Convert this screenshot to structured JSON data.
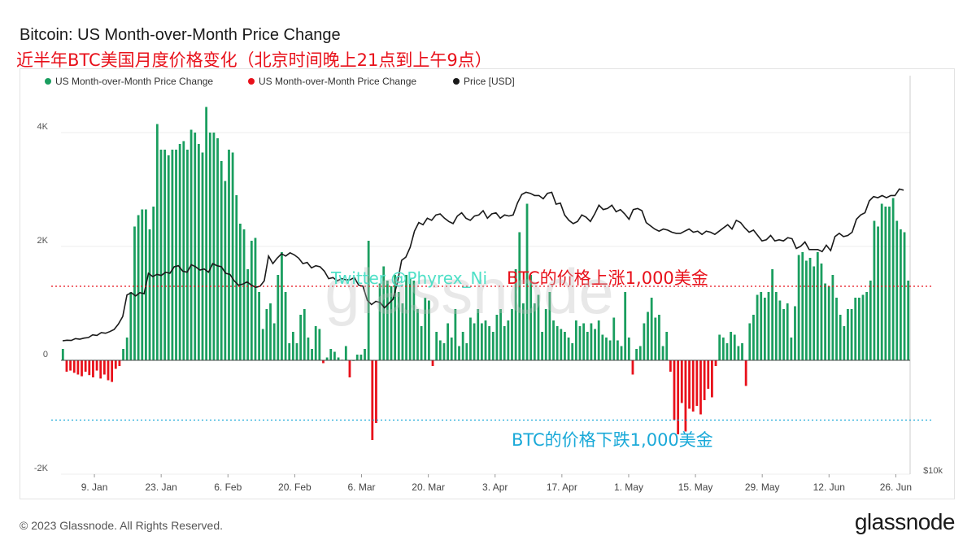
{
  "header": {
    "title": "Bitcoin: US Month-over-Month Price Change",
    "subtitle": "近半年BTC美国月度价格变化（北京时间晚上21点到上午9点）"
  },
  "footer": {
    "copyright": "© 2023 Glassnode. All Rights Reserved.",
    "logo": "glassnode"
  },
  "watermark": "glassnode",
  "colors": {
    "positive": "#1a9e5f",
    "negative": "#e8101a",
    "price": "#1a1a1a",
    "up_line": "#e8101a",
    "down_line": "#1aa9d8"
  },
  "chart_data": {
    "type": "bar",
    "title": "Bitcoin: US Month-over-Month Price Change",
    "legend_position": "top-left",
    "legend": [
      {
        "label": "US Month-over-Month Price Change",
        "color": "#1a9e5f"
      },
      {
        "label": "US Month-over-Month Price Change",
        "color": "#e8101a"
      },
      {
        "label": "Price [USD]",
        "color": "#1a1a1a"
      }
    ],
    "ylim_left": [
      -2000,
      5000
    ],
    "y_ticks_left": [
      "4K",
      "2K",
      "0",
      "-2K"
    ],
    "y_tick_values_left": [
      4000,
      2000,
      0,
      -2000
    ],
    "right_axis_label": "$10k",
    "x_tick_labels": [
      "9. Jan",
      "23. Jan",
      "6. Feb",
      "20. Feb",
      "6. Mar",
      "20. Mar",
      "3. Apr",
      "17. Apr",
      "1. May",
      "15. May",
      "29. May",
      "12. Jun",
      "26. Jun"
    ],
    "start_date": "2023-01-02",
    "end_date": "2023-06-29",
    "reference_lines": [
      {
        "value": 1300,
        "label": "BTC的价格上涨1,000美金",
        "color": "#e8101a"
      },
      {
        "value": -1050,
        "label": "BTC的价格下跌1,000美金",
        "color": "#1aa9d8"
      }
    ],
    "annotation_twitter": "Twitter @Phyrex_Ni",
    "mom_change": [
      200,
      -200,
      -180,
      -220,
      -250,
      -280,
      -200,
      -260,
      -300,
      -180,
      -320,
      -250,
      -350,
      -380,
      -150,
      -100,
      200,
      400,
      1200,
      2350,
      2550,
      2650,
      2650,
      2300,
      2700,
      4150,
      3700,
      3700,
      3600,
      3700,
      3700,
      3800,
      3850,
      3700,
      4050,
      4000,
      3800,
      3650,
      4450,
      4000,
      4000,
      3900,
      3500,
      3150,
      3700,
      3650,
      2900,
      2400,
      2300,
      1600,
      2100,
      2150,
      1200,
      550,
      900,
      1000,
      650,
      1500,
      1900,
      1200,
      300,
      500,
      300,
      800,
      900,
      400,
      200,
      600,
      550,
      -50,
      50,
      200,
      150,
      50,
      10,
      250,
      -300,
      0,
      100,
      100,
      200,
      2100,
      -1400,
      -1100,
      1350,
      1650,
      1400,
      1300,
      1500,
      1200,
      1000,
      1500,
      1450,
      1400,
      900,
      600,
      1100,
      1050,
      -100,
      500,
      350,
      300,
      650,
      400,
      900,
      250,
      500,
      300,
      750,
      650,
      900,
      650,
      700,
      600,
      500,
      800,
      900,
      600,
      700,
      900,
      1600,
      2250,
      1000,
      2750,
      1500,
      1000,
      1150,
      500,
      900,
      1200,
      700,
      600,
      550,
      500,
      400,
      300,
      700,
      600,
      650,
      500,
      650,
      550,
      700,
      450,
      400,
      350,
      750,
      350,
      250,
      1200,
      400,
      -250,
      200,
      250,
      650,
      850,
      1100,
      750,
      800,
      250,
      500,
      -200,
      -1050,
      -1300,
      -750,
      -1250,
      -850,
      -900,
      -800,
      -950,
      -700,
      -500,
      -650,
      -100,
      450,
      400,
      300,
      500,
      450,
      250,
      300,
      -450,
      650,
      800,
      1150,
      1200,
      1100,
      1200,
      1600,
      1200,
      1050,
      900,
      1000,
      400,
      950,
      1850,
      1900,
      1750,
      1800,
      1650,
      1900,
      1700,
      1350,
      1300,
      1500,
      1100,
      800,
      600,
      900,
      900,
      1100,
      1100,
      1150,
      1200,
      1400,
      2450,
      2350,
      2750,
      2700,
      2700,
      2850,
      2450,
      2300,
      2250,
      1400
    ],
    "price_usd": [
      16650,
      16700,
      16680,
      16850,
      16800,
      16900,
      16950,
      17200,
      17150,
      17400,
      17350,
      17500,
      17700,
      18200,
      18900,
      20900,
      21100,
      20800,
      21100,
      21000,
      22900,
      22600,
      22800,
      22700,
      23000,
      22900,
      23500,
      23600,
      23100,
      23000,
      23700,
      23500,
      23200,
      23300,
      23000,
      23800,
      23600,
      23500,
      22900,
      22800,
      22200,
      21800,
      21900,
      22100,
      21800,
      21600,
      21700,
      22200,
      24500,
      23800,
      24300,
      24700,
      24500,
      24800,
      24600,
      24300,
      23800,
      23900,
      23400,
      23600,
      23500,
      23100,
      22400,
      22500,
      22200,
      22400,
      22300,
      22300,
      22500,
      21800,
      21700,
      20400,
      20000,
      20300,
      20200,
      19700,
      20100,
      20500,
      22000,
      24100,
      24400,
      25300,
      26800,
      27600,
      27400,
      28000,
      27800,
      28300,
      28400,
      28000,
      27700,
      27500,
      28200,
      28500,
      28000,
      27800,
      28200,
      28300,
      28700,
      28000,
      28400,
      28500,
      28000,
      28300,
      28200,
      28300,
      29400,
      30200,
      30400,
      30300,
      30100,
      30100,
      29800,
      30300,
      30400,
      29300,
      29400,
      28300,
      27800,
      27500,
      27700,
      28300,
      28100,
      27700,
      28400,
      29200,
      28800,
      28900,
      29200,
      28600,
      28800,
      28400,
      27900,
      28800,
      28900,
      28700,
      27600,
      27300,
      27000,
      26800,
      27000,
      26900,
      26700,
      26600,
      26600,
      26800,
      27000,
      26700,
      26800,
      26500,
      26800,
      26700,
      26500,
      26800,
      27100,
      27400,
      27000,
      27800,
      27600,
      27100,
      26700,
      26900,
      26400,
      25900,
      26000,
      26400,
      25900,
      26000,
      25900,
      26200,
      26100,
      25200,
      25400,
      25800,
      25100,
      25100,
      25100,
      24900,
      25500,
      25000,
      26300,
      26600,
      26300,
      26400,
      26700,
      27900,
      28300,
      28500,
      29600,
      30000,
      29900,
      30100,
      29900,
      30100,
      30100,
      30700,
      30600
    ]
  }
}
